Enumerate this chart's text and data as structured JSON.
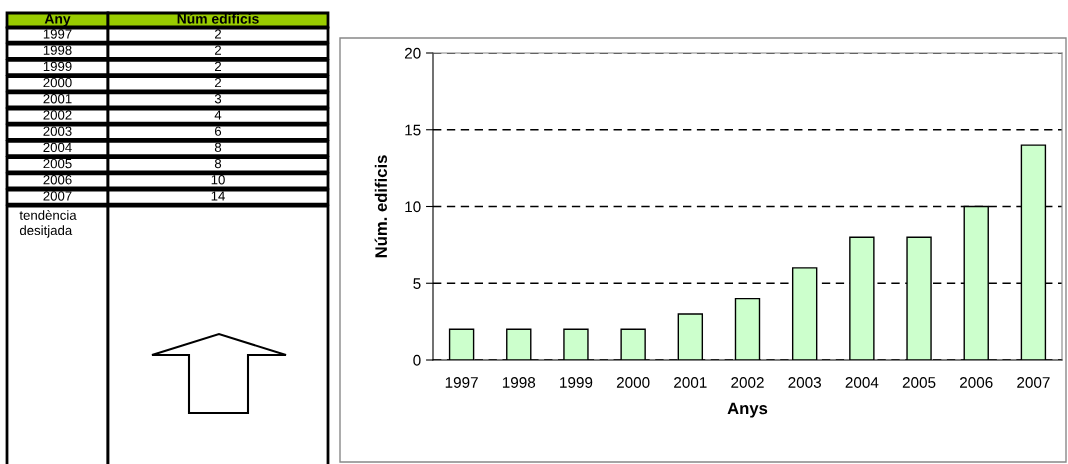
{
  "chart_data": {
    "type": "bar",
    "xlabel": "Anys",
    "ylabel": "Núm. edificis",
    "categories": [
      "1997",
      "1998",
      "1999",
      "2000",
      "2001",
      "2002",
      "2003",
      "2004",
      "2005",
      "2006",
      "2007"
    ],
    "values": [
      2,
      2,
      2,
      2,
      3,
      4,
      6,
      8,
      8,
      10,
      14
    ],
    "color": "#ccffcc",
    "ylim": [
      0,
      20
    ],
    "yticks": [
      0,
      5,
      10,
      15,
      20
    ],
    "grid": "y",
    "annotations": [
      "Any",
      "Núm edificis",
      "tendència desitjada",
      "2",
      "2",
      "2",
      "2",
      "3",
      "4",
      "6",
      "8",
      "8",
      "10",
      "14"
    ]
  }
}
